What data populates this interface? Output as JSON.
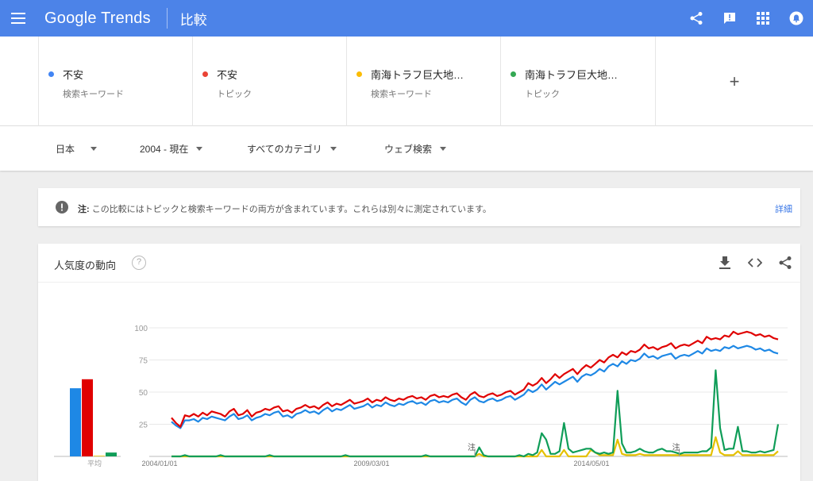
{
  "header": {
    "logo": "Google Trends",
    "page_title": "比較",
    "icons": [
      "menu-icon",
      "share-icon",
      "feedback-icon",
      "apps-icon",
      "account-icon"
    ]
  },
  "terms": [
    {
      "name": "不安",
      "type": "検索キーワード",
      "color": "#4285f4"
    },
    {
      "name": "不安",
      "type": "トピック",
      "color": "#ea4335"
    },
    {
      "name": "南海トラフ巨大地…",
      "type": "検索キーワード",
      "color": "#fbbc04"
    },
    {
      "name": "南海トラフ巨大地…",
      "type": "トピック",
      "color": "#34a853"
    }
  ],
  "add_term": "+",
  "filters": {
    "region": "日本",
    "period": "2004 - 現在",
    "category": "すべてのカテゴリ",
    "search_type": "ウェブ検索"
  },
  "notice": {
    "label": "注:",
    "text": "この比較にはトピックと検索キーワードの両方が含まれています。これらは別々に測定されています。",
    "link": "詳細"
  },
  "card": {
    "title": "人気度の動向",
    "help": "?",
    "icons": [
      "download-icon",
      "embed-icon",
      "share-icon"
    ]
  },
  "chart_data": {
    "type": "line",
    "y_ticks": [
      "100",
      "75",
      "50",
      "25"
    ],
    "x_ticks": [
      "2004/01/01",
      "2009/03/01",
      "2014/05/01"
    ],
    "ylim": [
      0,
      100
    ],
    "averages_label": "平均",
    "averages": [
      {
        "color": "#1e88e5",
        "value": 53
      },
      {
        "color": "#e00000",
        "value": 60
      },
      {
        "color": "#e5c100",
        "value": 0.5
      },
      {
        "color": "#0f9d58",
        "value": 3
      }
    ],
    "notes": [
      {
        "label": "注",
        "x_frac": 0.5
      },
      {
        "label": "注",
        "x_frac": 0.837
      }
    ],
    "series": [
      {
        "color": "#1e88e5",
        "values": [
          27,
          24,
          22,
          28,
          28,
          29,
          27,
          30,
          29,
          31,
          30,
          29,
          28,
          31,
          33,
          29,
          30,
          32,
          28,
          30,
          31,
          33,
          32,
          34,
          35,
          31,
          32,
          30,
          33,
          34,
          36,
          34,
          35,
          33,
          36,
          38,
          35,
          37,
          36,
          38,
          40,
          37,
          38,
          39,
          41,
          38,
          40,
          39,
          42,
          40,
          39,
          41,
          40,
          42,
          43,
          41,
          42,
          40,
          43,
          44,
          42,
          43,
          42,
          44,
          45,
          42,
          40,
          44,
          46,
          43,
          42,
          44,
          45,
          43,
          44,
          46,
          47,
          44,
          46,
          48,
          52,
          50,
          52,
          56,
          52,
          55,
          58,
          56,
          58,
          60,
          62,
          58,
          62,
          64,
          63,
          65,
          68,
          66,
          70,
          72,
          70,
          74,
          72,
          75,
          74,
          76,
          80,
          77,
          78,
          76,
          78,
          79,
          80,
          76,
          78,
          79,
          78,
          80,
          82,
          80,
          84,
          82,
          83,
          82,
          85,
          84,
          86,
          84,
          85,
          86,
          85,
          83,
          84,
          82,
          83,
          81,
          80
        ]
      },
      {
        "color": "#e00000",
        "values": [
          30,
          26,
          23,
          32,
          31,
          33,
          31,
          34,
          32,
          35,
          34,
          33,
          31,
          35,
          37,
          32,
          33,
          36,
          31,
          34,
          35,
          37,
          36,
          38,
          39,
          35,
          36,
          34,
          37,
          38,
          40,
          38,
          39,
          37,
          40,
          42,
          39,
          41,
          40,
          42,
          44,
          41,
          42,
          43,
          45,
          42,
          44,
          43,
          46,
          44,
          43,
          45,
          44,
          46,
          47,
          45,
          46,
          44,
          47,
          48,
          46,
          47,
          46,
          48,
          49,
          46,
          44,
          48,
          50,
          47,
          46,
          48,
          49,
          47,
          48,
          50,
          51,
          48,
          50,
          52,
          57,
          55,
          57,
          61,
          57,
          60,
          64,
          61,
          64,
          66,
          68,
          64,
          68,
          71,
          69,
          72,
          75,
          73,
          77,
          79,
          77,
          81,
          79,
          82,
          81,
          83,
          87,
          84,
          85,
          83,
          85,
          86,
          88,
          84,
          86,
          87,
          86,
          88,
          90,
          88,
          93,
          91,
          92,
          91,
          94,
          93,
          97,
          95,
          96,
          97,
          96,
          94,
          95,
          93,
          94,
          92,
          91
        ]
      },
      {
        "color": "#e5c100",
        "values": [
          0,
          0,
          0,
          0,
          0,
          0,
          0,
          0,
          0,
          0,
          0,
          0,
          0,
          0,
          0,
          0,
          0,
          0,
          0,
          0,
          0,
          0,
          0,
          0,
          0,
          0,
          0,
          0,
          0,
          0,
          0,
          0,
          0,
          0,
          0,
          0,
          0,
          0,
          0,
          0,
          0,
          0,
          0,
          0,
          0,
          0,
          0,
          0,
          0,
          0,
          0,
          0,
          0,
          0,
          0,
          0,
          0,
          0,
          0,
          0,
          0,
          0,
          0,
          0,
          0,
          0,
          0,
          0,
          0,
          2,
          0,
          0,
          0,
          0,
          0,
          0,
          0,
          0,
          0,
          0,
          0,
          0,
          0,
          5,
          0,
          0,
          0,
          0,
          5,
          0,
          0,
          0,
          0,
          0,
          5,
          3,
          1,
          1,
          1,
          1,
          13,
          2,
          1,
          1,
          1,
          2,
          1,
          1,
          1,
          1,
          1,
          1,
          1,
          1,
          1,
          1,
          1,
          1,
          1,
          1,
          1,
          1,
          15,
          3,
          1,
          1,
          1,
          4,
          1,
          1,
          1,
          1,
          1,
          1,
          1,
          1,
          4
        ]
      },
      {
        "color": "#0f9d58",
        "values": [
          0,
          0,
          0,
          1,
          0,
          0,
          0,
          0,
          0,
          0,
          0,
          1,
          0,
          0,
          0,
          0,
          0,
          0,
          0,
          0,
          0,
          0,
          1,
          0,
          0,
          0,
          0,
          0,
          0,
          0,
          0,
          0,
          0,
          0,
          0,
          0,
          0,
          0,
          0,
          1,
          0,
          0,
          0,
          0,
          0,
          0,
          0,
          0,
          0,
          0,
          0,
          0,
          0,
          0,
          0,
          0,
          0,
          1,
          0,
          0,
          0,
          0,
          0,
          0,
          0,
          0,
          0,
          0,
          0,
          7,
          1,
          0,
          0,
          0,
          0,
          0,
          0,
          0,
          1,
          0,
          2,
          1,
          3,
          18,
          13,
          2,
          2,
          4,
          26,
          6,
          3,
          4,
          5,
          6,
          6,
          3,
          2,
          3,
          2,
          3,
          51,
          10,
          3,
          3,
          4,
          6,
          4,
          3,
          3,
          5,
          6,
          4,
          4,
          3,
          2,
          3,
          3,
          3,
          3,
          4,
          4,
          7,
          67,
          22,
          5,
          6,
          6,
          23,
          4,
          4,
          3,
          3,
          4,
          3,
          4,
          5,
          25
        ]
      }
    ]
  }
}
